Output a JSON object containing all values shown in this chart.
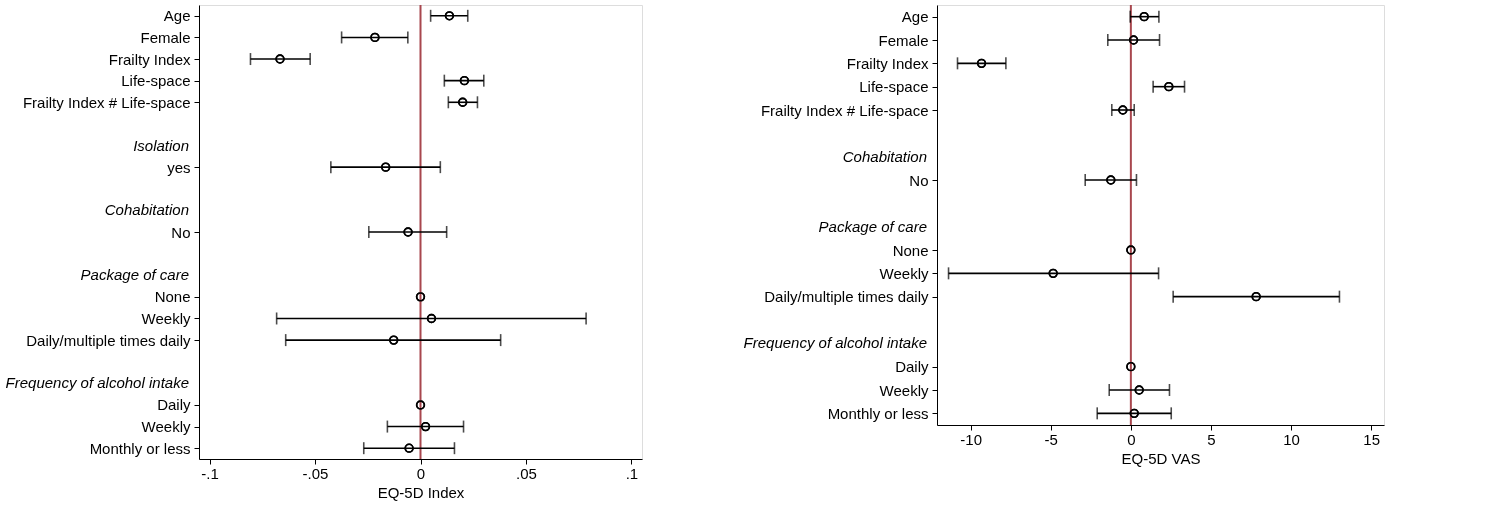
{
  "chart_data": [
    {
      "type": "scatter",
      "orientation": "horizontal",
      "marker": "circle",
      "color": "#000000",
      "grid": false,
      "xlabel": "EQ-5D Index",
      "categories": [
        "Age",
        "Female",
        "Frailty Index",
        "Life-space",
        "Frailty Index # Life-space",
        null,
        "Isolation",
        "yes",
        null,
        "Cohabitation",
        "No",
        null,
        "Package of care",
        "None",
        "Weekly",
        "Daily/multiple times daily",
        null,
        "Frequency of alcohol intake",
        "Daily",
        "Weekly",
        "Monthly or less"
      ],
      "values": [
        0.0137,
        -0.0216,
        -0.0666,
        0.0208,
        0.02,
        null,
        null,
        -0.0165,
        null,
        null,
        -0.0059,
        null,
        null,
        0,
        0.0052,
        -0.0127,
        null,
        null,
        0,
        0.0024,
        -0.0054
      ],
      "errors": [
        [
          0.0048,
          0.0224
        ],
        [
          -0.0374,
          -0.006
        ],
        [
          -0.0806,
          -0.0523
        ],
        [
          0.0113,
          0.03
        ],
        [
          0.0132,
          0.027
        ],
        null,
        null,
        [
          -0.0425,
          0.0094
        ],
        null,
        null,
        [
          -0.0245,
          0.0124
        ],
        null,
        null,
        null,
        [
          -0.0682,
          0.0785
        ],
        [
          -0.0639,
          0.038
        ],
        null,
        null,
        null,
        [
          -0.0157,
          0.0204
        ],
        [
          -0.0269,
          0.0161
        ]
      ],
      "xlim": [
        -0.105,
        0.105
      ],
      "xticks": [
        {
          "value": -0.1,
          "label": "-.1"
        },
        {
          "value": -0.05,
          "label": "-.05"
        },
        0,
        {
          "value": 0.05,
          "label": ".05"
        },
        {
          "value": 0.1,
          "label": ".1"
        }
      ],
      "ref_lines": [
        {
          "axis": "x",
          "value": 0,
          "color": "#a8474e"
        }
      ]
    },
    {
      "type": "scatter",
      "orientation": "horizontal",
      "marker": "circle",
      "color": "#000000",
      "grid": false,
      "xlabel": "EQ-5D VAS",
      "categories": [
        "Age",
        "Female",
        "Frailty Index",
        "Life-space",
        "Frailty Index # Life-space",
        null,
        "Cohabitation",
        "No",
        null,
        "Package of care",
        "None",
        "Weekly",
        "Daily/multiple times daily",
        null,
        "Frequency of alcohol intake",
        "Daily",
        "Weekly",
        "Monthly or less"
      ],
      "values": [
        0.83,
        0.17,
        -9.32,
        2.37,
        -0.5,
        null,
        null,
        -1.25,
        null,
        null,
        0,
        -4.85,
        7.82,
        null,
        null,
        0,
        0.52,
        0.21
      ],
      "errors": [
        [
          -0.04,
          1.75
        ],
        [
          -1.44,
          1.79
        ],
        [
          -10.82,
          -7.8
        ],
        [
          1.39,
          3.35
        ],
        [
          -1.19,
          0.21
        ],
        null,
        null,
        [
          -2.85,
          0.35
        ],
        null,
        null,
        null,
        [
          -11.38,
          1.73
        ],
        [
          2.64,
          13.02
        ],
        null,
        null,
        null,
        [
          -1.35,
          2.41
        ],
        [
          -2.1,
          2.52
        ]
      ],
      "xlim": [
        -12.1,
        15.8
      ],
      "xticks": [
        -10,
        -5,
        0,
        5,
        10,
        15
      ],
      "ref_lines": [
        {
          "axis": "x",
          "value": 0,
          "color": "#a8474e"
        }
      ]
    }
  ]
}
